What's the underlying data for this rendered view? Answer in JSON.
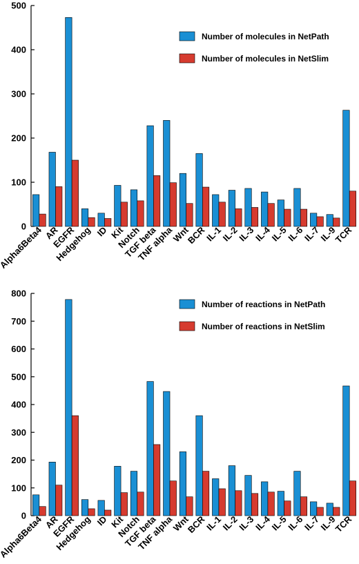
{
  "colors": {
    "netpath": "#1a8fd4",
    "netslim": "#d63b2f"
  },
  "chart_data": [
    {
      "type": "bar",
      "title": "",
      "xlabel": "",
      "ylabel": "",
      "ylim": [
        0,
        500
      ],
      "yticks": [
        0,
        100,
        200,
        300,
        400,
        500
      ],
      "grid": false,
      "legend_position": "top-right",
      "categories": [
        "Alpha6Beta4",
        "AR",
        "EGFR",
        "Hedgehog",
        "ID",
        "Kit",
        "Notch",
        "TGF beta",
        "TNF alpha",
        "Wnt",
        "BCR",
        "IL-1",
        "IL-2",
        "IL-3",
        "IL-4",
        "IL-5",
        "IL-6",
        "IL-7",
        "IL-9",
        "TCR"
      ],
      "series": [
        {
          "name": "Number of molecules in NetPath",
          "color": "#1a8fd4",
          "values": [
            72,
            168,
            473,
            40,
            30,
            93,
            83,
            228,
            240,
            120,
            165,
            72,
            82,
            86,
            78,
            60,
            86,
            30,
            27,
            263
          ]
        },
        {
          "name": "Number of molecules in NetSlim",
          "color": "#d63b2f",
          "values": [
            28,
            90,
            150,
            20,
            18,
            55,
            58,
            115,
            99,
            52,
            89,
            55,
            40,
            43,
            52,
            39,
            39,
            22,
            19,
            80
          ]
        }
      ]
    },
    {
      "type": "bar",
      "title": "",
      "xlabel": "",
      "ylabel": "",
      "ylim": [
        0,
        800
      ],
      "yticks": [
        0,
        100,
        200,
        300,
        400,
        500,
        600,
        700,
        800
      ],
      "grid": false,
      "legend_position": "top-right",
      "categories": [
        "Alpha6Beta4",
        "AR",
        "EGFR",
        "Hedgehog",
        "ID",
        "Kit",
        "Notch",
        "TGF beta",
        "TNF alpha",
        "Wnt",
        "BCR",
        "IL-1",
        "IL-2",
        "IL-3",
        "IL-4",
        "IL-5",
        "IL-6",
        "IL-7",
        "IL-9",
        "TCR"
      ],
      "series": [
        {
          "name": "Number of reactions in NetPath",
          "color": "#1a8fd4",
          "values": [
            75,
            193,
            778,
            58,
            55,
            178,
            160,
            483,
            447,
            230,
            360,
            133,
            180,
            145,
            122,
            88,
            160,
            50,
            45,
            467
          ]
        },
        {
          "name": "Number of reactions in NetSlim",
          "color": "#d63b2f",
          "values": [
            33,
            110,
            360,
            25,
            20,
            83,
            85,
            256,
            125,
            68,
            160,
            97,
            90,
            80,
            85,
            53,
            68,
            30,
            30,
            125
          ]
        }
      ]
    }
  ]
}
